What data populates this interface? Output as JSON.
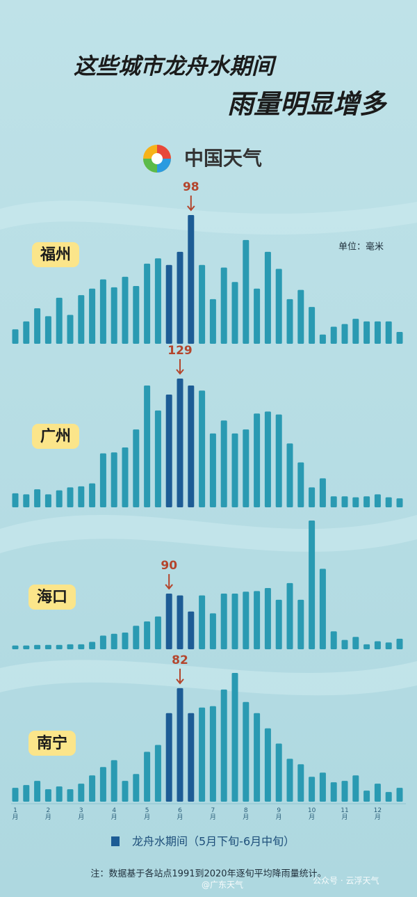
{
  "title_line1": "这些城市龙舟水期间",
  "title_line2": "雨量明显增多",
  "logo": "中国天气",
  "unit": "单位：毫米",
  "note": "注：数据基于各站点1991到2020年逐旬平均降雨量统计。",
  "watermark": "@广东天气",
  "source": "公众号 · 云浮天气",
  "chart_data": [
    {
      "type": "bar",
      "title": "福州",
      "series": [
        {
          "color": "#2a9ab2",
          "values": [
            11,
            17,
            27,
            21,
            35,
            22,
            37,
            42,
            49,
            43,
            51,
            44,
            61,
            65,
            null,
            null,
            null,
            60,
            34,
            58,
            47,
            79,
            42,
            70,
            57,
            34,
            41,
            28,
            7,
            13,
            15,
            19,
            17,
            17,
            17,
            9
          ]
        },
        {
          "name": "龙舟水期间（5月下旬-6月中旬）",
          "color": "#1d5c95",
          "values": [
            null,
            null,
            null,
            null,
            null,
            null,
            null,
            null,
            null,
            null,
            null,
            null,
            null,
            null,
            60,
            70,
            98,
            null,
            null,
            null,
            null,
            null,
            null,
            null,
            null,
            null,
            null,
            null,
            null,
            null,
            null,
            null,
            null,
            null,
            null,
            null
          ]
        }
      ]
    },
    {
      "type": "bar",
      "title": "广州",
      "series": [
        {
          "color": "#2a9ab2",
          "values": [
            14,
            13,
            18,
            13,
            17,
            20,
            21,
            24,
            54,
            55,
            60,
            78,
            122,
            97,
            null,
            null,
            null,
            117,
            74,
            87,
            74,
            78,
            94,
            96,
            93,
            64,
            45,
            20,
            29,
            11,
            11,
            10,
            11,
            13,
            10,
            9
          ]
        },
        {
          "color": "#1d5c95",
          "values": [
            null,
            null,
            null,
            null,
            null,
            null,
            null,
            null,
            null,
            null,
            null,
            null,
            null,
            null,
            113,
            129,
            122,
            null,
            null,
            null,
            null,
            null,
            null,
            null,
            null,
            null,
            null,
            null,
            null,
            null,
            null,
            null,
            null,
            null,
            null,
            null
          ]
        }
      ]
    },
    {
      "type": "bar",
      "title": "海口",
      "series": [
        {
          "color": "#2a9ab2",
          "values": [
            6,
            6,
            7,
            7,
            7,
            8,
            8,
            12,
            22,
            25,
            27,
            38,
            45,
            53,
            null,
            null,
            null,
            87,
            58,
            90,
            90,
            93,
            94,
            99,
            80,
            107,
            80,
            208,
            130,
            29,
            15,
            20,
            8,
            13,
            11,
            17
          ]
        },
        {
          "color": "#1d5c95",
          "values": [
            null,
            null,
            null,
            null,
            null,
            null,
            null,
            null,
            null,
            null,
            null,
            null,
            null,
            null,
            90,
            87,
            61,
            null,
            null,
            null,
            null,
            null,
            null,
            null,
            null,
            null,
            null,
            null,
            null,
            null,
            null,
            null,
            null,
            null,
            null,
            null
          ]
        }
      ]
    },
    {
      "type": "bar",
      "title": "南宁",
      "categories": [
        "1月",
        null,
        null,
        "2月",
        null,
        null,
        "3月",
        null,
        null,
        "4月",
        null,
        null,
        "5月",
        null,
        null,
        "6月",
        null,
        null,
        "7月",
        null,
        null,
        "8月",
        null,
        null,
        "9月",
        null,
        null,
        "10月",
        null,
        null,
        "11月",
        null,
        null,
        "12月",
        null,
        null
      ],
      "series": [
        {
          "color": "#2a9ab2",
          "values": [
            10,
            12,
            15,
            9,
            11,
            9,
            13,
            19,
            25,
            30,
            15,
            20,
            36,
            41,
            null,
            null,
            null,
            68,
            69,
            81,
            93,
            72,
            64,
            53,
            42,
            31,
            27,
            18,
            21,
            14,
            15,
            19,
            8,
            13,
            7,
            10
          ]
        },
        {
          "color": "#1d5c95",
          "values": [
            null,
            null,
            null,
            null,
            null,
            null,
            null,
            null,
            null,
            null,
            null,
            null,
            null,
            null,
            64,
            82,
            64,
            null,
            null,
            null,
            null,
            null,
            null,
            null,
            null,
            null,
            null,
            null,
            null,
            null,
            null,
            null,
            null,
            null,
            null,
            null
          ]
        }
      ]
    }
  ]
}
